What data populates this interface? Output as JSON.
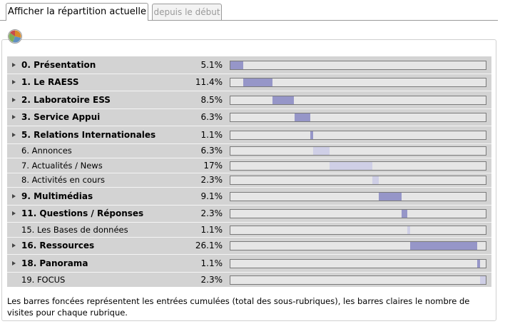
{
  "tabs": {
    "active_label": "Afficher la répartition actuelle",
    "inactive_label": "depuis le début"
  },
  "icons": {
    "chart": "pie-chart-icon",
    "expand": "expand-arrow-icon"
  },
  "colors": {
    "dark_bar": "#9696c8",
    "light_bar": "#cfcfe6",
    "table_background": "#d3d3d3",
    "track": "#e6e6e6"
  },
  "stats": {
    "rows": [
      {
        "label": "0. Présentation",
        "percent": "5.1%",
        "value": 5.1,
        "offset": 0,
        "type": "parent"
      },
      {
        "label": "1. Le RAESS",
        "percent": "11.4%",
        "value": 11.4,
        "offset": 5.1,
        "type": "parent"
      },
      {
        "label": "2. Laboratoire ESS",
        "percent": "8.5%",
        "value": 8.5,
        "offset": 16.5,
        "type": "parent"
      },
      {
        "label": "3. Service Appui",
        "percent": "6.3%",
        "value": 6.3,
        "offset": 25.0,
        "type": "parent"
      },
      {
        "label": "5. Relations Internationales",
        "percent": "1.1%",
        "value": 1.1,
        "offset": 31.3,
        "type": "parent"
      },
      {
        "label": "6. Annonces",
        "percent": "6.3%",
        "value": 6.3,
        "offset": 32.4,
        "type": "child"
      },
      {
        "label": "7. Actualités / News",
        "percent": "17%",
        "value": 17,
        "offset": 38.7,
        "type": "child"
      },
      {
        "label": "8. Activités en cours",
        "percent": "2.3%",
        "value": 2.3,
        "offset": 55.7,
        "type": "child"
      },
      {
        "label": "9. Multimédias",
        "percent": "9.1%",
        "value": 9.1,
        "offset": 58.0,
        "type": "parent"
      },
      {
        "label": "11. Questions / Réponses",
        "percent": "2.3%",
        "value": 2.3,
        "offset": 67.1,
        "type": "parent"
      },
      {
        "label": "15. Les Bases de données",
        "percent": "1.1%",
        "value": 1.1,
        "offset": 69.4,
        "type": "child"
      },
      {
        "label": "16. Ressources",
        "percent": "26.1%",
        "value": 26.1,
        "offset": 70.5,
        "type": "parent"
      },
      {
        "label": "18. Panorama",
        "percent": "1.1%",
        "value": 1.1,
        "offset": 96.6,
        "type": "parent"
      },
      {
        "label": "19. FOCUS",
        "percent": "2.3%",
        "value": 2.3,
        "offset": 97.7,
        "type": "child"
      }
    ]
  },
  "footnote": "Les barres foncées représentent les entrées cumulées (total des sous-rubriques), les barres claires le nombre de visites pour chaque rubrique."
}
